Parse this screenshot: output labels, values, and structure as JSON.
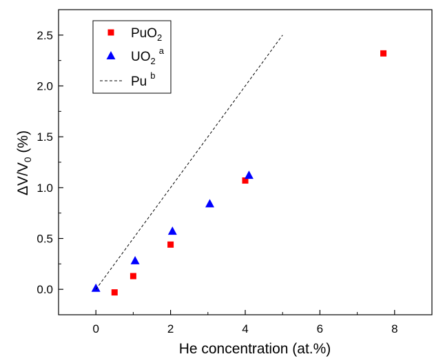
{
  "chart_data": {
    "type": "scatter",
    "xlabel": "He concentration (at.%)",
    "ylabel": {
      "main": "ΔV/V",
      "sub": "0",
      "suffix": " (%)"
    },
    "xlim": [
      -1,
      9
    ],
    "ylim": [
      -0.25,
      2.75
    ],
    "x_ticks": [
      0,
      2,
      4,
      6,
      8
    ],
    "x_tick_labels": [
      "0",
      "2",
      "4",
      "6",
      "8"
    ],
    "y_ticks": [
      0.0,
      0.5,
      1.0,
      1.5,
      2.0,
      2.5
    ],
    "y_tick_labels": [
      "0.0",
      "0.5",
      "1.0",
      "1.5",
      "2.0",
      "2.5"
    ],
    "grid": false,
    "legend_position": "top-left",
    "series": [
      {
        "name": "PuO2",
        "legend_main": "PuO",
        "legend_sub": "2",
        "legend_sup": "",
        "marker": "square",
        "color": "#ff0000",
        "x": [
          0.5,
          1.0,
          2.0,
          4.0,
          7.7
        ],
        "y": [
          -0.03,
          0.13,
          0.44,
          1.07,
          2.32
        ]
      },
      {
        "name": "UO2 a",
        "legend_main": "UO",
        "legend_sub": "2",
        "legend_sup": "a",
        "marker": "triangle",
        "color": "#0000ff",
        "x": [
          0.0,
          1.05,
          2.05,
          3.05,
          4.1
        ],
        "y": [
          0.01,
          0.28,
          0.57,
          0.84,
          1.12
        ]
      },
      {
        "name": "Pu b",
        "legend_main": "Pu",
        "legend_sub": "",
        "legend_sup": "b",
        "marker": "dashed-line",
        "color": "#000000",
        "x": [
          0,
          5
        ],
        "y": [
          0,
          2.5
        ]
      }
    ]
  }
}
